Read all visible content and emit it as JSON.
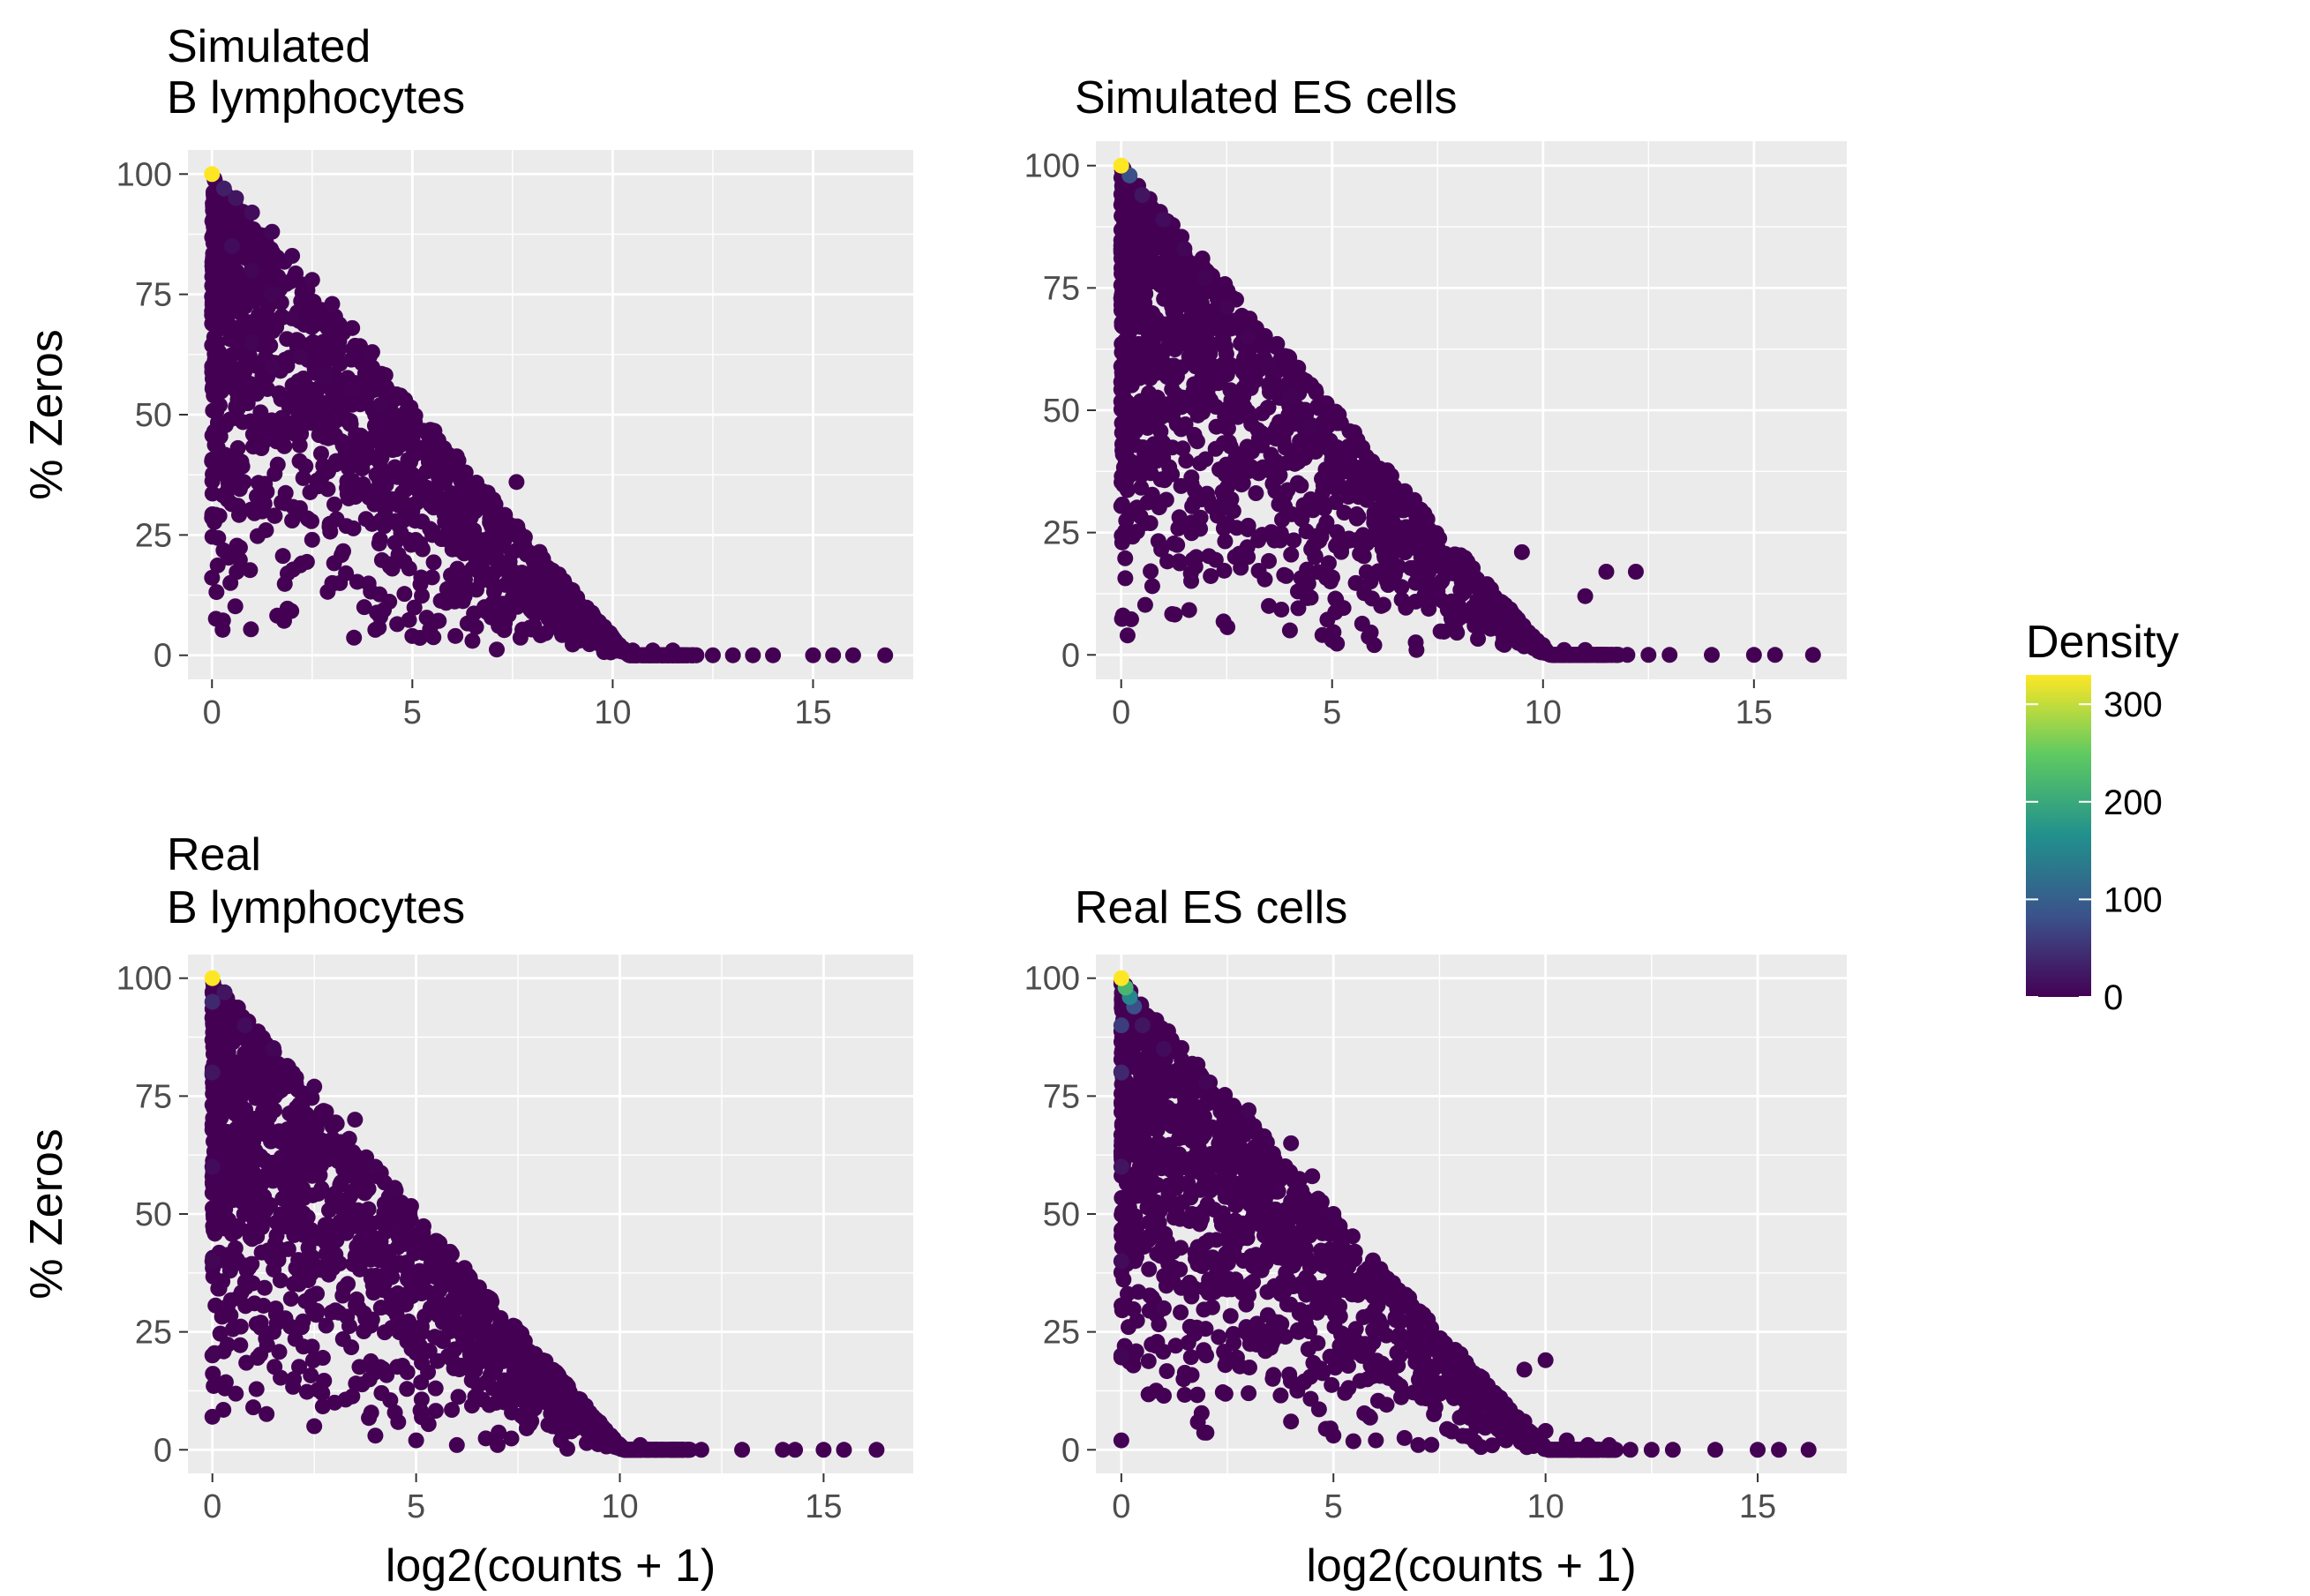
{
  "chart_data": [
    {
      "type": "scatter",
      "title": "Simulated\nB lymphocytes",
      "xlabel": "",
      "ylabel": "% Zeros",
      "xlim": [
        -0.6,
        17.5
      ],
      "ylim": [
        -5,
        105
      ],
      "xticks": [
        0,
        5,
        10,
        15
      ],
      "yticks": [
        0,
        25,
        50,
        75,
        100
      ],
      "xmax_data": 16.8,
      "points": [
        [
          0,
          100,
          330
        ],
        [
          0.3,
          97,
          30
        ],
        [
          0.6,
          95,
          20
        ],
        [
          1,
          92,
          10
        ],
        [
          1.5,
          88,
          5
        ],
        [
          2,
          83,
          3
        ],
        [
          2.5,
          78,
          2
        ],
        [
          3,
          73,
          2
        ],
        [
          3.5,
          68,
          1
        ],
        [
          4,
          63,
          1
        ],
        [
          0.5,
          85,
          10
        ],
        [
          1,
          80,
          5
        ],
        [
          1.5,
          75,
          3
        ],
        [
          2,
          70,
          2
        ],
        [
          1,
          65,
          3
        ],
        [
          1.5,
          60,
          2
        ],
        [
          2.2,
          62,
          2
        ],
        [
          2.8,
          58,
          1
        ],
        [
          3.5,
          55,
          1
        ],
        [
          4.2,
          52,
          1
        ],
        [
          4.8,
          48,
          0
        ],
        [
          5.5,
          42,
          0
        ],
        [
          6,
          38,
          0
        ],
        [
          6.5,
          35,
          0
        ],
        [
          7.6,
          36,
          0
        ],
        [
          5,
          30,
          0
        ],
        [
          5.5,
          25,
          0
        ],
        [
          6,
          22,
          0
        ],
        [
          6.5,
          18,
          0
        ],
        [
          7,
          15,
          0
        ],
        [
          7.5,
          12,
          0
        ],
        [
          8,
          9,
          0
        ],
        [
          8.5,
          6,
          0
        ],
        [
          9,
          4,
          0
        ],
        [
          9.5,
          3,
          0
        ],
        [
          10,
          2,
          0
        ],
        [
          10.5,
          1,
          0
        ],
        [
          11,
          1,
          0
        ],
        [
          11.5,
          1,
          0
        ],
        [
          12,
          0,
          0
        ],
        [
          12.5,
          0,
          0
        ],
        [
          13,
          0,
          0
        ],
        [
          13.5,
          0,
          0
        ],
        [
          14,
          0,
          0
        ],
        [
          15,
          0,
          0
        ],
        [
          15.5,
          0,
          0
        ],
        [
          16,
          0,
          0
        ],
        [
          16.8,
          0,
          0
        ],
        [
          3,
          15,
          0
        ],
        [
          3.8,
          10,
          0
        ],
        [
          4.2,
          8,
          0
        ],
        [
          2,
          28,
          0
        ],
        [
          2.5,
          24,
          0
        ],
        [
          4.5,
          18,
          0
        ],
        [
          6.8,
          10,
          0
        ],
        [
          7.2,
          6,
          0
        ],
        [
          5,
          4,
          0
        ],
        [
          6.5,
          3,
          0
        ]
      ]
    },
    {
      "type": "scatter",
      "title": "Simulated ES cells",
      "xlabel": "",
      "ylabel": "",
      "xlim": [
        -0.6,
        17.2
      ],
      "ylim": [
        -5,
        105
      ],
      "xticks": [
        0,
        5,
        10,
        15
      ],
      "yticks": [
        0,
        25,
        50,
        75,
        100
      ],
      "xmax_data": 16.4,
      "points": [
        [
          0,
          100,
          330
        ],
        [
          0.2,
          98,
          80
        ],
        [
          0.5,
          94,
          20
        ],
        [
          1,
          89,
          10
        ],
        [
          1.5,
          83,
          5
        ],
        [
          2,
          77,
          3
        ],
        [
          2.5,
          71,
          2
        ],
        [
          3,
          65,
          2
        ],
        [
          3.5,
          59,
          1
        ],
        [
          4,
          53,
          1
        ],
        [
          4.5,
          47,
          1
        ],
        [
          5,
          41,
          0
        ],
        [
          5.5,
          35,
          0
        ],
        [
          6,
          29,
          0
        ],
        [
          6.5,
          23,
          0
        ],
        [
          7,
          17,
          0
        ],
        [
          7.5,
          13,
          0
        ],
        [
          8,
          10,
          0
        ],
        [
          8.5,
          7,
          0
        ],
        [
          9,
          5,
          0
        ],
        [
          9.5,
          3,
          0
        ],
        [
          10,
          2,
          0
        ],
        [
          10.5,
          1,
          0
        ],
        [
          11,
          1,
          0
        ],
        [
          11.5,
          0,
          0
        ],
        [
          12,
          0,
          0
        ],
        [
          12.5,
          0,
          0
        ],
        [
          13,
          0,
          0
        ],
        [
          14,
          0,
          0
        ],
        [
          15,
          0,
          0
        ],
        [
          15.5,
          0,
          0
        ],
        [
          16.4,
          0,
          0
        ],
        [
          9.5,
          21,
          0
        ],
        [
          11.5,
          17,
          0
        ],
        [
          12.2,
          17,
          0
        ],
        [
          11,
          12,
          0
        ],
        [
          2,
          40,
          1
        ],
        [
          2.5,
          30,
          1
        ],
        [
          3,
          20,
          0
        ],
        [
          3.5,
          10,
          0
        ],
        [
          4,
          5,
          0
        ],
        [
          5,
          3,
          0
        ],
        [
          6,
          2,
          0
        ],
        [
          7,
          1,
          0
        ]
      ]
    },
    {
      "type": "scatter",
      "title": "Real\nB lymphocytes",
      "xlabel": "log2(counts + 1)",
      "ylabel": "% Zeros",
      "xlim": [
        -0.6,
        17.2
      ],
      "ylim": [
        -5,
        105
      ],
      "xticks": [
        0,
        5,
        10,
        15
      ],
      "yticks": [
        0,
        25,
        50,
        75,
        100
      ],
      "xmax_data": 16.3,
      "points": [
        [
          0,
          100,
          330
        ],
        [
          0,
          95,
          40
        ],
        [
          0,
          80,
          20
        ],
        [
          0,
          60,
          10
        ],
        [
          0,
          40,
          5
        ],
        [
          0,
          20,
          3
        ],
        [
          0,
          7,
          1
        ],
        [
          0.3,
          97,
          20
        ],
        [
          0.8,
          90,
          10
        ],
        [
          1.5,
          85,
          5
        ],
        [
          2.5,
          77,
          3
        ],
        [
          3.5,
          70,
          2
        ],
        [
          4,
          60,
          1
        ],
        [
          4.5,
          55,
          1
        ],
        [
          5,
          45,
          0
        ],
        [
          5.5,
          38,
          0
        ],
        [
          6,
          30,
          0
        ],
        [
          6.5,
          25,
          0
        ],
        [
          7,
          20,
          0
        ],
        [
          7.5,
          15,
          0
        ],
        [
          8,
          10,
          0
        ],
        [
          8.5,
          7,
          0
        ],
        [
          9,
          5,
          0
        ],
        [
          9.5,
          3,
          0
        ],
        [
          10,
          1,
          0
        ],
        [
          10.5,
          1,
          0
        ],
        [
          11,
          0,
          0
        ],
        [
          12,
          0,
          0
        ],
        [
          13,
          0,
          0
        ],
        [
          14,
          0,
          0
        ],
        [
          14.3,
          0,
          0
        ],
        [
          15,
          0,
          0
        ],
        [
          15.5,
          0,
          0
        ],
        [
          16.3,
          0,
          0
        ],
        [
          1.5,
          25,
          0
        ],
        [
          2,
          15,
          0
        ],
        [
          3,
          10,
          0
        ],
        [
          2.5,
          5,
          0
        ],
        [
          4,
          3,
          0
        ],
        [
          5,
          2,
          0
        ],
        [
          6,
          1,
          0
        ],
        [
          7,
          1,
          0
        ]
      ]
    },
    {
      "type": "scatter",
      "title": "Real ES cells",
      "xlabel": "log2(counts + 1)",
      "ylabel": "",
      "xlim": [
        -0.6,
        17.1
      ],
      "ylim": [
        -5,
        105
      ],
      "xticks": [
        0,
        5,
        10,
        15
      ],
      "yticks": [
        0,
        25,
        50,
        75,
        100
      ],
      "xmax_data": 16.2,
      "points": [
        [
          0,
          100,
          330
        ],
        [
          0.1,
          98,
          220
        ],
        [
          0.2,
          96,
          150
        ],
        [
          0.3,
          94,
          80
        ],
        [
          0,
          90,
          60
        ],
        [
          0,
          80,
          40
        ],
        [
          0,
          60,
          20
        ],
        [
          0,
          40,
          10
        ],
        [
          0,
          20,
          5
        ],
        [
          0,
          2,
          1
        ],
        [
          0.5,
          90,
          20
        ],
        [
          1,
          85,
          10
        ],
        [
          2,
          78,
          5
        ],
        [
          3,
          72,
          3
        ],
        [
          4,
          65,
          2
        ],
        [
          4.5,
          58,
          1
        ],
        [
          5,
          50,
          1
        ],
        [
          5.5,
          42,
          0
        ],
        [
          6,
          36,
          0
        ],
        [
          6.5,
          30,
          0
        ],
        [
          7,
          24,
          0
        ],
        [
          7.5,
          18,
          0
        ],
        [
          8,
          14,
          0
        ],
        [
          8.5,
          10,
          0
        ],
        [
          9,
          8,
          0
        ],
        [
          9.5,
          6,
          0
        ],
        [
          10,
          4,
          0
        ],
        [
          10.5,
          2,
          0
        ],
        [
          11,
          1,
          0
        ],
        [
          11.5,
          1,
          0
        ],
        [
          12,
          0,
          0
        ],
        [
          12.5,
          0,
          0
        ],
        [
          13,
          0,
          0
        ],
        [
          14,
          0,
          0
        ],
        [
          15,
          0,
          0
        ],
        [
          15.5,
          0,
          0
        ],
        [
          16.2,
          0,
          0
        ],
        [
          9.5,
          17,
          0
        ],
        [
          10,
          19,
          0
        ],
        [
          1,
          30,
          2
        ],
        [
          2,
          20,
          1
        ],
        [
          3,
          12,
          1
        ],
        [
          4,
          6,
          0
        ],
        [
          5,
          3,
          0
        ],
        [
          6,
          2,
          0
        ],
        [
          7,
          1,
          0
        ]
      ]
    }
  ],
  "legend": {
    "title": "Density",
    "range": [
      0,
      330
    ],
    "ticks": [
      0,
      100,
      200,
      300
    ],
    "stops": [
      "#440154",
      "#3b528b",
      "#21908d",
      "#5dc962",
      "#fde725"
    ]
  },
  "colors": {
    "panel": "#ebebeb",
    "grid": "#ffffff",
    "tick_label": "#4d4d4d",
    "point_low": "#440154"
  }
}
